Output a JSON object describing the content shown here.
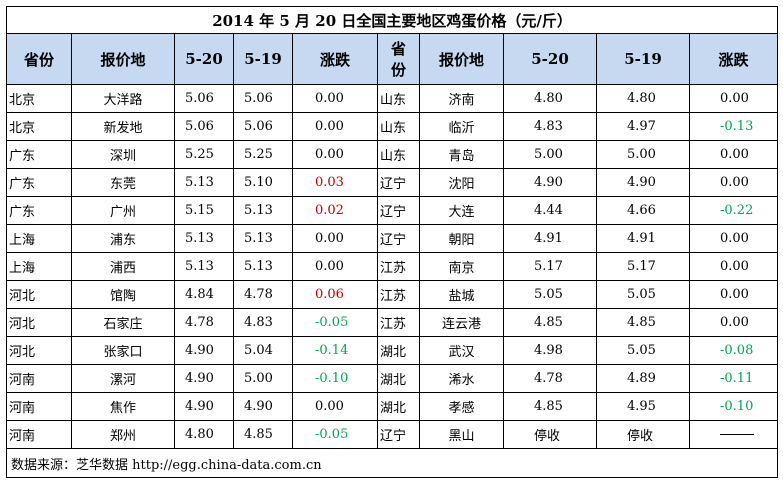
{
  "title": "2014 年 5 月 20 日全国主要地区鸡蛋价格（元/斤）",
  "headers": {
    "province": "省份",
    "location": "报价地",
    "d520": "5-20",
    "d519": "5-19",
    "change": "涨跌",
    "province2_top": "省",
    "province2_bottom": "份",
    "location2": "报价地",
    "d520_2": "5-20",
    "d519_2": "5-19",
    "change2": "涨跌"
  },
  "rows": [
    {
      "p1": "北京",
      "c1": "大洋路",
      "a1": "5.06",
      "b1": "5.06",
      "d1": "0.00",
      "t1": "flat",
      "p2": "山东",
      "c2": "济南",
      "a2": "4.80",
      "b2": "4.80",
      "d2": "0.00",
      "t2": "flat"
    },
    {
      "p1": "北京",
      "c1": "新发地",
      "a1": "5.06",
      "b1": "5.06",
      "d1": "0.00",
      "t1": "flat",
      "p2": "山东",
      "c2": "临沂",
      "a2": "4.83",
      "b2": "4.97",
      "d2": "-0.13",
      "t2": "down"
    },
    {
      "p1": "广东",
      "c1": "深圳",
      "a1": "5.25",
      "b1": "5.25",
      "d1": "0.00",
      "t1": "flat",
      "p2": "山东",
      "c2": "青岛",
      "a2": "5.00",
      "b2": "5.00",
      "d2": "0.00",
      "t2": "flat"
    },
    {
      "p1": "广东",
      "c1": "东莞",
      "a1": "5.13",
      "b1": "5.10",
      "d1": "0.03",
      "t1": "up",
      "p2": "辽宁",
      "c2": "沈阳",
      "a2": "4.90",
      "b2": "4.90",
      "d2": "0.00",
      "t2": "flat"
    },
    {
      "p1": "广东",
      "c1": "广州",
      "a1": "5.15",
      "b1": "5.13",
      "d1": "0.02",
      "t1": "up",
      "p2": "辽宁",
      "c2": "大连",
      "a2": "4.44",
      "b2": "4.66",
      "d2": "-0.22",
      "t2": "down"
    },
    {
      "p1": "上海",
      "c1": "浦东",
      "a1": "5.13",
      "b1": "5.13",
      "d1": "0.00",
      "t1": "flat",
      "p2": "辽宁",
      "c2": "朝阳",
      "a2": "4.91",
      "b2": "4.91",
      "d2": "0.00",
      "t2": "flat"
    },
    {
      "p1": "上海",
      "c1": "浦西",
      "a1": "5.13",
      "b1": "5.13",
      "d1": "0.00",
      "t1": "flat",
      "p2": "江苏",
      "c2": "南京",
      "a2": "5.17",
      "b2": "5.17",
      "d2": "0.00",
      "t2": "flat"
    },
    {
      "p1": "河北",
      "c1": "馆陶",
      "a1": "4.84",
      "b1": "4.78",
      "d1": "0.06",
      "t1": "up",
      "p2": "江苏",
      "c2": "盐城",
      "a2": "5.05",
      "b2": "5.05",
      "d2": "0.00",
      "t2": "flat"
    },
    {
      "p1": "河北",
      "c1": "石家庄",
      "a1": "4.78",
      "b1": "4.83",
      "d1": "-0.05",
      "t1": "down",
      "p2": "江苏",
      "c2": "连云港",
      "a2": "4.85",
      "b2": "4.85",
      "d2": "0.00",
      "t2": "flat"
    },
    {
      "p1": "河北",
      "c1": "张家口",
      "a1": "4.90",
      "b1": "5.04",
      "d1": "-0.14",
      "t1": "down",
      "p2": "湖北",
      "c2": "武汉",
      "a2": "4.98",
      "b2": "5.05",
      "d2": "-0.08",
      "t2": "down"
    },
    {
      "p1": "河南",
      "c1": "漯河",
      "a1": "4.90",
      "b1": "5.00",
      "d1": "-0.10",
      "t1": "down",
      "p2": "湖北",
      "c2": "浠水",
      "a2": "4.78",
      "b2": "4.89",
      "d2": "-0.11",
      "t2": "down"
    },
    {
      "p1": "河南",
      "c1": "焦作",
      "a1": "4.90",
      "b1": "4.90",
      "d1": "0.00",
      "t1": "flat",
      "p2": "湖北",
      "c2": "孝感",
      "a2": "4.85",
      "b2": "4.95",
      "d2": "-0.10",
      "t2": "down"
    },
    {
      "p1": "河南",
      "c1": "郑州",
      "a1": "4.80",
      "b1": "4.85",
      "d1": "-0.05",
      "t1": "down",
      "p2": "辽宁",
      "c2": "黑山",
      "a2": "停收",
      "b2": "停收",
      "d2": "",
      "t2": "dash"
    }
  ],
  "footer": "数据来源：芝华数据 http://egg.china-data.com.cn",
  "colors": {
    "header_bg": "#c6d9f1",
    "up": "#c00000",
    "down": "#00a651"
  }
}
